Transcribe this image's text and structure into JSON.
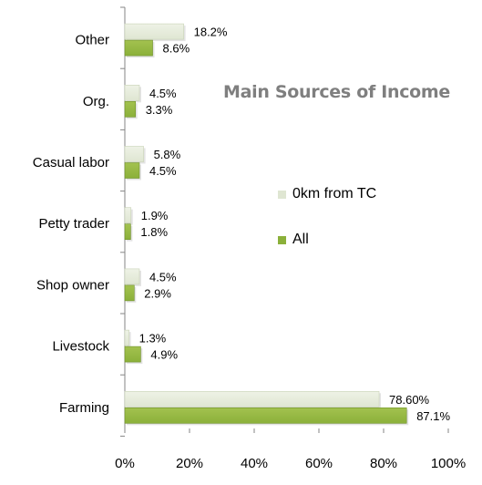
{
  "chart_data": {
    "type": "bar",
    "orientation": "horizontal",
    "title": "Main Sources of Income",
    "categories": [
      "Other",
      "Org.",
      "Casual labor",
      "Petty trader",
      "Shop owner",
      "Livestock",
      "Farming"
    ],
    "series": [
      {
        "name": "0km from TC",
        "color": "#dfe6d2",
        "values": [
          18.2,
          4.5,
          5.8,
          1.9,
          4.5,
          1.3,
          78.6
        ],
        "labels": [
          "18.2%",
          "4.5%",
          "5.8%",
          "1.9%",
          "4.5%",
          "1.3%",
          "78.60%"
        ]
      },
      {
        "name": "All",
        "color": "#8bb03a",
        "values": [
          8.6,
          3.3,
          4.5,
          1.8,
          2.9,
          4.9,
          87.1
        ],
        "labels": [
          "8.6%",
          "3.3%",
          "4.5%",
          "1.8%",
          "2.9%",
          "4.9%",
          "87.1%"
        ]
      }
    ],
    "x_ticks": [
      "0%",
      "20%",
      "40%",
      "60%",
      "80%",
      "100%"
    ],
    "xlim": [
      0,
      100
    ],
    "grid": false,
    "legend_position": "right"
  }
}
